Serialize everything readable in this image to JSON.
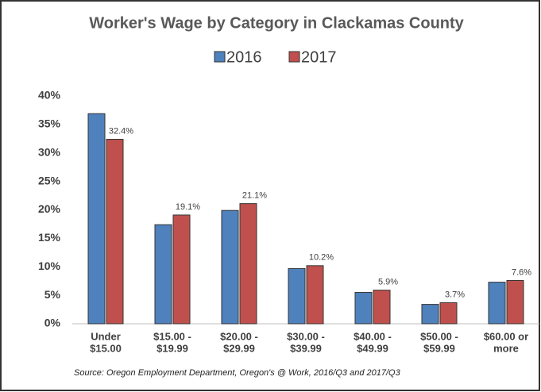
{
  "chart_data": {
    "type": "bar",
    "title": "Worker's Wage by Category in Clackamas County",
    "categories": [
      [
        "Under",
        "$15.00"
      ],
      [
        "$15.00 -",
        "$19.99"
      ],
      [
        "$20.00 -",
        "$29.99"
      ],
      [
        "$30.00 -",
        "$39.99"
      ],
      [
        "$40.00 -",
        "$49.99"
      ],
      [
        "$50.00 -",
        "$59.99"
      ],
      [
        "$60.00 or",
        "more"
      ]
    ],
    "series": [
      {
        "name": "2016",
        "color": "#4f81bd",
        "values": [
          36.9,
          17.4,
          19.9,
          9.7,
          5.5,
          3.4,
          7.3
        ]
      },
      {
        "name": "2017",
        "color": "#c0504d",
        "values": [
          32.4,
          19.1,
          21.1,
          10.2,
          5.9,
          3.7,
          7.6
        ],
        "value_labels": [
          "32.4%",
          "19.1%",
          "21.1%",
          "10.2%",
          "5.9%",
          "3.7%",
          "7.6%"
        ]
      }
    ],
    "ylim": [
      0,
      40
    ],
    "yticks": [
      {
        "value": 0,
        "label": "0%"
      },
      {
        "value": 5,
        "label": "5%"
      },
      {
        "value": 10,
        "label": "10%"
      },
      {
        "value": 15,
        "label": "15%"
      },
      {
        "value": 20,
        "label": "20%"
      },
      {
        "value": 25,
        "label": "25%"
      },
      {
        "value": 30,
        "label": "30%"
      },
      {
        "value": 35,
        "label": "35%"
      },
      {
        "value": 40,
        "label": "40%"
      }
    ],
    "source": "Source: Oregon Employment Department, Oregon's @ Work, 2016/Q3 and 2017/Q3"
  }
}
